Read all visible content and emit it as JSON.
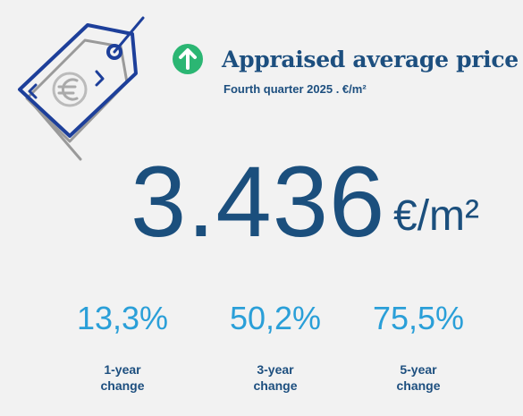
{
  "header": {
    "title": "Appraised average price",
    "subtitle": "Fourth quarter 2025 . €/m²"
  },
  "main": {
    "value": "3.436",
    "unit": "€/m²"
  },
  "stats": [
    {
      "value": "13,3%",
      "label": "1-year change"
    },
    {
      "value": "50,2%",
      "label": "3-year change"
    },
    {
      "value": "75,5%",
      "label": "5-year change"
    }
  ]
}
